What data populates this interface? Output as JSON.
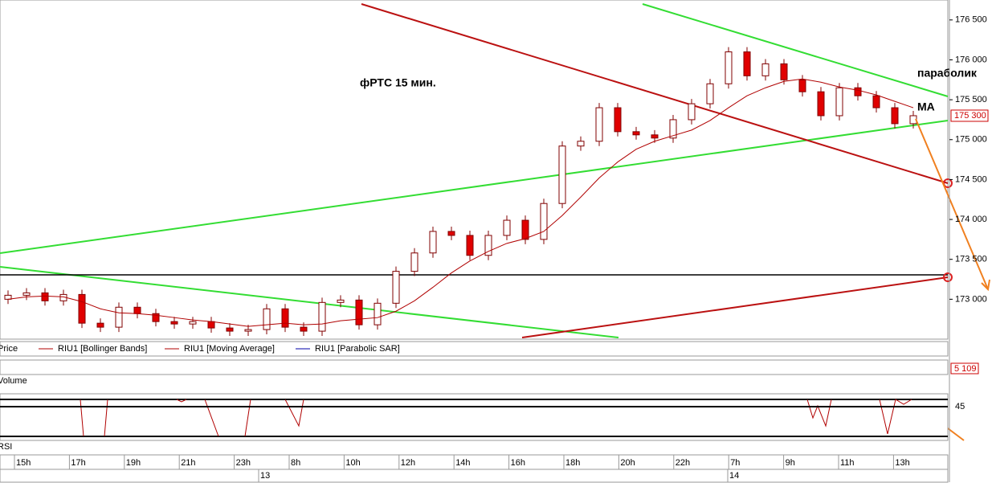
{
  "chart_data": {
    "type": "candlestick",
    "annotations": [
      "фРТС  15 мин.",
      "параболик",
      "MA"
    ],
    "legend": [
      "Price",
      "RIU1 [Bollinger Bands]",
      "RIU1 [Moving Average]",
      "RIU1 [Parabolic SAR]"
    ],
    "ylim": [
      172500,
      176750
    ],
    "yticks": [
      {
        "value": 173000,
        "label": "173 000"
      },
      {
        "value": 173500,
        "label": "173 500"
      },
      {
        "value": 174000,
        "label": "174 000"
      },
      {
        "value": 174500,
        "label": "174 500"
      },
      {
        "value": 175000,
        "label": "175 000"
      },
      {
        "value": 175500,
        "label": "175 500"
      },
      {
        "value": 176000,
        "label": "176 000"
      },
      {
        "value": 176500,
        "label": "176 500"
      }
    ],
    "last_price": {
      "value": 175300,
      "label": "175 300"
    },
    "up_color": "#ffffff",
    "down_color": "#e00000",
    "edge_color": "#800000",
    "ma_color": "#b00000",
    "open": [
      173000,
      173050,
      173080,
      172980,
      173060,
      172700,
      172650,
      172900,
      172820,
      172720,
      172690,
      172720,
      172640,
      172600,
      172620,
      172880,
      172650,
      172600,
      172960,
      172990,
      172680,
      172950,
      173350,
      173580,
      173850,
      173800,
      173550,
      173800,
      173990,
      173750,
      174200,
      174920,
      174980,
      175400,
      175100,
      175060,
      175020,
      175250,
      175450,
      175700,
      176100,
      175800,
      175950,
      175750,
      175600,
      175300,
      175650,
      175550,
      175400,
      175200
    ],
    "high": [
      173110,
      173140,
      173140,
      173120,
      173120,
      172760,
      172960,
      172960,
      172880,
      172780,
      172780,
      172780,
      172700,
      172680,
      172940,
      172940,
      172710,
      173020,
      173050,
      173050,
      173010,
      173410,
      173640,
      173910,
      173910,
      173860,
      173860,
      174050,
      174050,
      174260,
      174980,
      175040,
      175460,
      175460,
      175160,
      175120,
      175310,
      175510,
      175760,
      176160,
      176160,
      176010,
      176010,
      175810,
      175660,
      175710,
      175710,
      175610,
      175460,
      175360
    ],
    "low": [
      172940,
      172990,
      172920,
      172920,
      172640,
      172590,
      172590,
      172760,
      172660,
      172630,
      172630,
      172580,
      172540,
      172540,
      172560,
      172590,
      172540,
      172540,
      172900,
      172620,
      172620,
      172890,
      173290,
      173520,
      173740,
      173490,
      173490,
      173740,
      173690,
      173690,
      174140,
      174860,
      174920,
      175040,
      175000,
      174960,
      174960,
      175190,
      175390,
      175640,
      175740,
      175740,
      175690,
      175540,
      175240,
      175240,
      175490,
      175340,
      175140,
      175140
    ],
    "close": [
      173050,
      173080,
      172980,
      173060,
      172700,
      172650,
      172900,
      172820,
      172720,
      172690,
      172720,
      172640,
      172600,
      172620,
      172880,
      172650,
      172600,
      172960,
      172990,
      172680,
      172950,
      173350,
      173580,
      173850,
      173800,
      173550,
      173800,
      173990,
      173750,
      174200,
      174920,
      174980,
      175400,
      175100,
      175060,
      175020,
      175250,
      175450,
      175700,
      176100,
      175800,
      175950,
      175750,
      175600,
      175300,
      175650,
      175550,
      175400,
      175200,
      175300
    ],
    "ma": [
      173000,
      173030,
      173040,
      173030,
      172970,
      172880,
      172830,
      172820,
      172800,
      172770,
      172740,
      172720,
      172690,
      172660,
      172680,
      172700,
      172680,
      172690,
      172730,
      172750,
      172770,
      172850,
      172980,
      173150,
      173330,
      173480,
      173600,
      173700,
      173760,
      173850,
      174050,
      174280,
      174520,
      174720,
      174880,
      174980,
      175050,
      175120,
      175240,
      175400,
      175550,
      175650,
      175730,
      175760,
      175720,
      175660,
      175620,
      175560,
      175480,
      175400
    ],
    "volume": {
      "label": "Volume",
      "last": {
        "value": 5109,
        "label": "5 109"
      }
    },
    "rsi": {
      "label": "RSI",
      "ylim": [
        30,
        50
      ],
      "yticks": [
        45
      ]
    },
    "time_labels": [
      "15h",
      "17h",
      "19h",
      "21h",
      "23h",
      "8h",
      "10h",
      "12h",
      "14h",
      "16h",
      "18h",
      "20h",
      "22h",
      "7h",
      "9h",
      "11h",
      "13h"
    ],
    "dates": [
      "13",
      "14"
    ]
  }
}
